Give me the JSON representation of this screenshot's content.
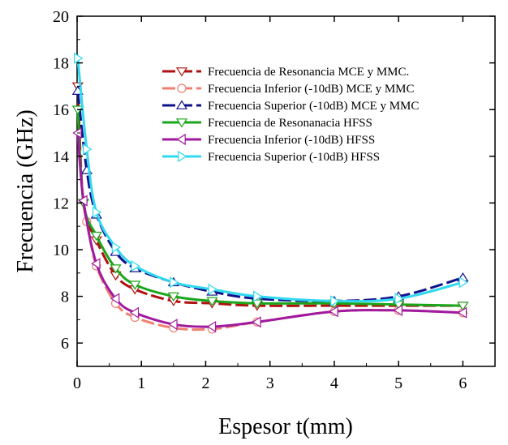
{
  "chart_data": {
    "type": "line",
    "title": "",
    "xlabel": "Espesor t(mm)",
    "ylabel": "Frecuencia (GHz)",
    "xlim": [
      0,
      6.5
    ],
    "ylim": [
      5,
      20
    ],
    "xticks": [
      "0",
      "1",
      "2",
      "3",
      "4",
      "5",
      "6"
    ],
    "yticks": [
      "6",
      "8",
      "10",
      "12",
      "14",
      "16",
      "18",
      "20"
    ],
    "grid": false,
    "legend_position": "top-right",
    "series": [
      {
        "name": "Frecuencia de Resonancia MCE y MMC.",
        "color": "#b01010",
        "dash": "dashed",
        "marker": "triangle-down",
        "x": [
          0.01,
          0.1,
          0.3,
          0.6,
          0.9,
          1.5,
          2.1,
          2.8,
          4,
          5,
          6
        ],
        "y": [
          17.0,
          12.0,
          10.4,
          8.9,
          8.3,
          7.8,
          7.7,
          7.6,
          7.6,
          7.6,
          7.6
        ]
      },
      {
        "name": "Frecuencia Inferior (-10dB) MCE y MMC",
        "color": "#f08070",
        "dash": "dashed",
        "marker": "circle",
        "x": [
          0.15,
          0.3,
          0.6,
          0.9,
          1.5,
          2.1,
          2.8,
          4,
          5,
          6
        ],
        "y": [
          11.2,
          9.3,
          7.7,
          7.1,
          6.65,
          6.6,
          6.9,
          7.35,
          7.4,
          7.3
        ]
      },
      {
        "name": "Frecuencia Superior (-10dB) MCE y MMC",
        "color": "#10108c",
        "dash": "dashed",
        "marker": "triangle-up",
        "x": [
          0.01,
          0.15,
          0.3,
          0.6,
          0.9,
          1.5,
          2.1,
          2.8,
          4,
          5,
          6
        ],
        "y": [
          16.8,
          13.4,
          11.5,
          9.9,
          9.2,
          8.6,
          8.2,
          7.9,
          7.8,
          8.0,
          8.8
        ]
      },
      {
        "name": "Frecuencia de Resonanacia HFSS",
        "color": "#1aa61a",
        "dash": "solid",
        "marker": "triangle-down",
        "x": [
          0.01,
          0.1,
          0.3,
          0.6,
          0.9,
          1.5,
          2.1,
          2.8,
          4,
          5,
          6
        ],
        "y": [
          16.0,
          12.0,
          10.6,
          9.2,
          8.5,
          8.0,
          7.8,
          7.7,
          7.7,
          7.65,
          7.6
        ]
      },
      {
        "name": "Frecuencia Inferior (-10dB) HFSS",
        "color": "#a01aa0",
        "dash": "solid",
        "marker": "triangle-left",
        "x": [
          0.01,
          0.1,
          0.3,
          0.6,
          0.9,
          1.5,
          2.1,
          2.8,
          4,
          5,
          6
        ],
        "y": [
          15.0,
          12.1,
          9.4,
          7.9,
          7.3,
          6.8,
          6.7,
          6.9,
          7.35,
          7.4,
          7.3
        ]
      },
      {
        "name": "Frecuencia Superior (-10dB) HFSS",
        "color": "#30d8f0",
        "dash": "solid",
        "marker": "triangle-right",
        "x": [
          0.01,
          0.15,
          0.3,
          0.6,
          0.9,
          1.5,
          2.1,
          2.8,
          4,
          5,
          6
        ],
        "y": [
          18.2,
          14.3,
          11.6,
          10.1,
          9.3,
          8.6,
          8.3,
          8.0,
          7.8,
          7.9,
          8.6
        ]
      }
    ]
  }
}
